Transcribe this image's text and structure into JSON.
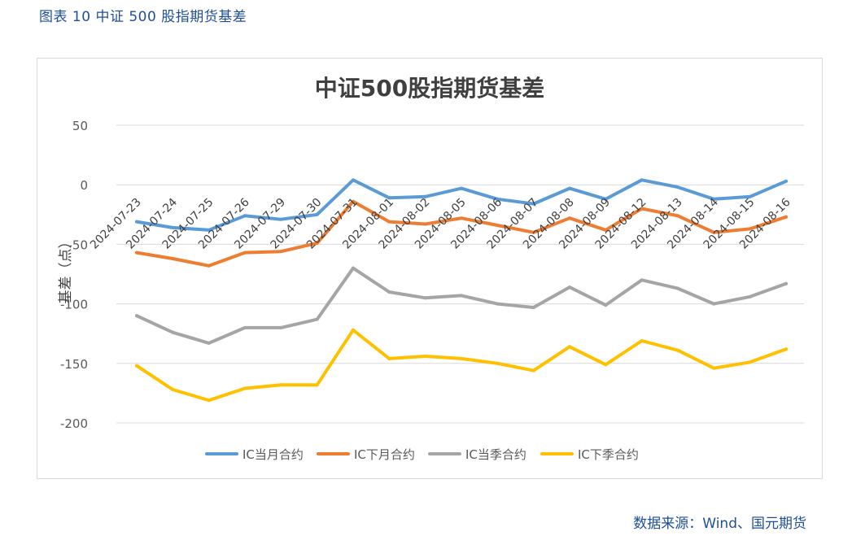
{
  "figure": {
    "caption": "图表 10  中证 500 股指期货基差",
    "source": "数据来源：Wind、国元期货"
  },
  "chart_data": {
    "type": "line",
    "title": "中证500股指期货基差",
    "ylabel": "基差（点）",
    "xlabel": "",
    "ylim": [
      -200,
      50
    ],
    "yticks": [
      50,
      0,
      -50,
      -100,
      -150,
      -200
    ],
    "grid": true,
    "legend_position": "bottom",
    "categories": [
      "2024-07-23",
      "2024-07-24",
      "2024-07-25",
      "2024-07-26",
      "2024-07-29",
      "2024-07-30",
      "2024-07-31",
      "2024-08-01",
      "2024-08-02",
      "2024-08-05",
      "2024-08-06",
      "2024-08-07",
      "2024-08-08",
      "2024-08-09",
      "2024-08-12",
      "2024-08-13",
      "2024-08-14",
      "2024-08-15",
      "2024-08-16"
    ],
    "series": [
      {
        "name": "IC当月合约",
        "color": "#5b9bd5",
        "values": [
          -31,
          -36,
          -38,
          -26,
          -29,
          -25,
          4,
          -11,
          -10,
          -3,
          -12,
          -16,
          -3,
          -12,
          4,
          -2,
          -12,
          -10,
          3
        ]
      },
      {
        "name": "IC下月合约",
        "color": "#ed7d31",
        "values": [
          -57,
          -62,
          -68,
          -57,
          -56,
          -49,
          -14,
          -31,
          -33,
          -28,
          -34,
          -40,
          -28,
          -38,
          -20,
          -26,
          -40,
          -37,
          -27
        ]
      },
      {
        "name": "IC当季合约",
        "color": "#a5a5a5",
        "values": [
          -110,
          -124,
          -133,
          -120,
          -120,
          -113,
          -70,
          -90,
          -95,
          -93,
          -100,
          -103,
          -86,
          -101,
          -80,
          -87,
          -100,
          -94,
          -83
        ]
      },
      {
        "name": "IC下季合约",
        "color": "#ffc000",
        "values": [
          -152,
          -172,
          -181,
          -171,
          -168,
          -168,
          -122,
          -146,
          -144,
          -146,
          -150,
          -156,
          -136,
          -151,
          -131,
          -139,
          -154,
          -149,
          -138
        ]
      }
    ]
  }
}
